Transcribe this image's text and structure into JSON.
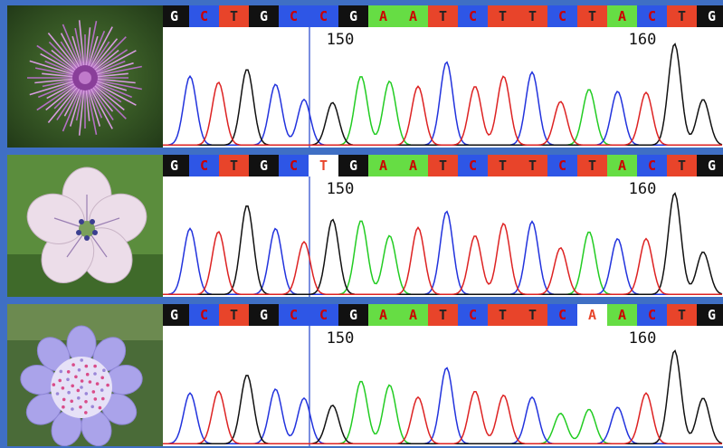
{
  "base_colors": {
    "A": "#66dd44",
    "C": "#2e56e6",
    "G": "#111111",
    "T": "#e8442a",
    "highlight_bg": "#ffffff"
  },
  "letter_colors": {
    "A": "#cc0000",
    "C": "#cc0000",
    "G": "#ffffff",
    "T": "#222222",
    "highlight_fg": "#e8442a"
  },
  "trace_colors": {
    "A": "#22cc22",
    "C": "#2233dd",
    "G": "#111111",
    "T": "#dd2222"
  },
  "marker_color": "#2244cc",
  "panels": [
    {
      "flower": "pink-thistle-flower",
      "bases": [
        "G",
        "C",
        "T",
        "G",
        "C",
        "C",
        "G",
        "A",
        "A",
        "T",
        "C",
        "T",
        "T",
        "C",
        "T",
        "A",
        "C",
        "T",
        "G",
        "G"
      ],
      "highlight_index": null,
      "position_labels": [
        "150",
        "160"
      ],
      "peaks": [
        {
          "b": "C",
          "h": 0.68
        },
        {
          "b": "T",
          "h": 0.62
        },
        {
          "b": "G",
          "h": 0.75
        },
        {
          "b": "C",
          "h": 0.6
        },
        {
          "b": "C",
          "h": 0.45
        },
        {
          "b": "G",
          "h": 0.42
        },
        {
          "b": "A",
          "h": 0.68
        },
        {
          "b": "A",
          "h": 0.63
        },
        {
          "b": "T",
          "h": 0.58
        },
        {
          "b": "C",
          "h": 0.82
        },
        {
          "b": "T",
          "h": 0.58
        },
        {
          "b": "T",
          "h": 0.68
        },
        {
          "b": "C",
          "h": 0.72
        },
        {
          "b": "T",
          "h": 0.43
        },
        {
          "b": "A",
          "h": 0.55
        },
        {
          "b": "C",
          "h": 0.53
        },
        {
          "b": "T",
          "h": 0.52
        },
        {
          "b": "G",
          "h": 1.0
        },
        {
          "b": "G",
          "h": 0.45
        }
      ]
    },
    {
      "flower": "white-geranium-flower",
      "bases": [
        "G",
        "C",
        "T",
        "G",
        "C",
        "T",
        "G",
        "A",
        "A",
        "T",
        "C",
        "T",
        "T",
        "C",
        "T",
        "A",
        "C",
        "T",
        "G",
        "G"
      ],
      "highlight_index": 5,
      "position_labels": [
        "150",
        "160"
      ],
      "peaks": [
        {
          "b": "C",
          "h": 0.65
        },
        {
          "b": "T",
          "h": 0.62
        },
        {
          "b": "G",
          "h": 0.88
        },
        {
          "b": "C",
          "h": 0.65
        },
        {
          "b": "T",
          "h": 0.52
        },
        {
          "b": "G",
          "h": 0.74
        },
        {
          "b": "A",
          "h": 0.73
        },
        {
          "b": "A",
          "h": 0.58
        },
        {
          "b": "T",
          "h": 0.66
        },
        {
          "b": "C",
          "h": 0.82
        },
        {
          "b": "T",
          "h": 0.58
        },
        {
          "b": "T",
          "h": 0.7
        },
        {
          "b": "C",
          "h": 0.72
        },
        {
          "b": "T",
          "h": 0.46
        },
        {
          "b": "A",
          "h": 0.62
        },
        {
          "b": "C",
          "h": 0.55
        },
        {
          "b": "T",
          "h": 0.55
        },
        {
          "b": "G",
          "h": 1.0
        },
        {
          "b": "G",
          "h": 0.42
        }
      ]
    },
    {
      "flower": "lilac-scabious-flower",
      "bases": [
        "G",
        "C",
        "T",
        "G",
        "C",
        "C",
        "G",
        "A",
        "A",
        "T",
        "C",
        "T",
        "T",
        "C",
        "A",
        "A",
        "C",
        "T",
        "G",
        "G"
      ],
      "highlight_index": 14,
      "position_labels": [
        "150",
        "160"
      ],
      "peaks": [
        {
          "b": "C",
          "h": 0.5
        },
        {
          "b": "T",
          "h": 0.52
        },
        {
          "b": "G",
          "h": 0.68
        },
        {
          "b": "C",
          "h": 0.54
        },
        {
          "b": "C",
          "h": 0.45
        },
        {
          "b": "G",
          "h": 0.38
        },
        {
          "b": "A",
          "h": 0.62
        },
        {
          "b": "A",
          "h": 0.58
        },
        {
          "b": "T",
          "h": 0.46
        },
        {
          "b": "C",
          "h": 0.75
        },
        {
          "b": "T",
          "h": 0.52
        },
        {
          "b": "T",
          "h": 0.48
        },
        {
          "b": "C",
          "h": 0.46
        },
        {
          "b": "A",
          "h": 0.3
        },
        {
          "b": "A",
          "h": 0.34
        },
        {
          "b": "C",
          "h": 0.36
        },
        {
          "b": "T",
          "h": 0.5
        },
        {
          "b": "G",
          "h": 0.92
        },
        {
          "b": "G",
          "h": 0.45
        }
      ]
    }
  ]
}
